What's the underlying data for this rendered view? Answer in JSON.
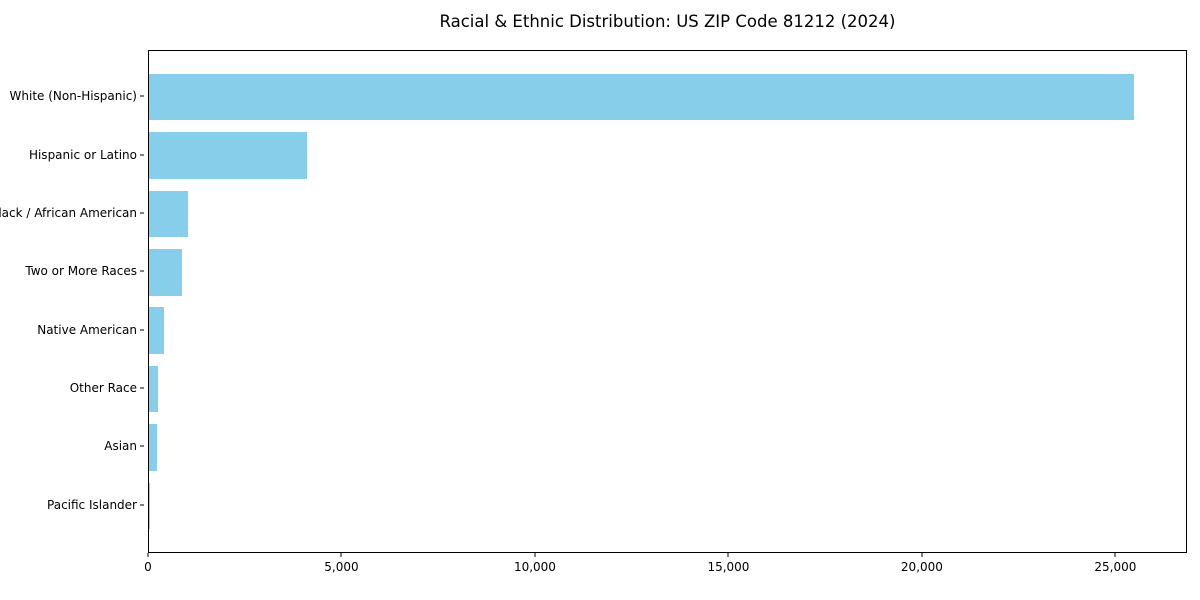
{
  "page": {
    "background": "#ffffff"
  },
  "chart_data": {
    "type": "bar",
    "orientation": "horizontal",
    "title": "Racial & Ethnic Distribution: US ZIP Code 81212 (2024)",
    "categories": [
      "White (Non-Hispanic)",
      "Hispanic or Latino",
      "Black / African American",
      "Two or More Races",
      "Native American",
      "Other Race",
      "Asian",
      "Pacific Islander"
    ],
    "values": [
      25500,
      4100,
      1000,
      860,
      380,
      240,
      200,
      20
    ],
    "bar_color": "#87CEEB",
    "frame_color": "#000000",
    "text_color": "#000000",
    "xlabel": "",
    "ylabel": "",
    "xlim": [
      0,
      26850
    ],
    "x_ticks": [
      0,
      5000,
      10000,
      15000,
      20000,
      25000
    ],
    "x_tick_labels": [
      "0",
      "5,000",
      "10,000",
      "15,000",
      "20,000",
      "25,000"
    ],
    "grid": false,
    "legend": null
  }
}
